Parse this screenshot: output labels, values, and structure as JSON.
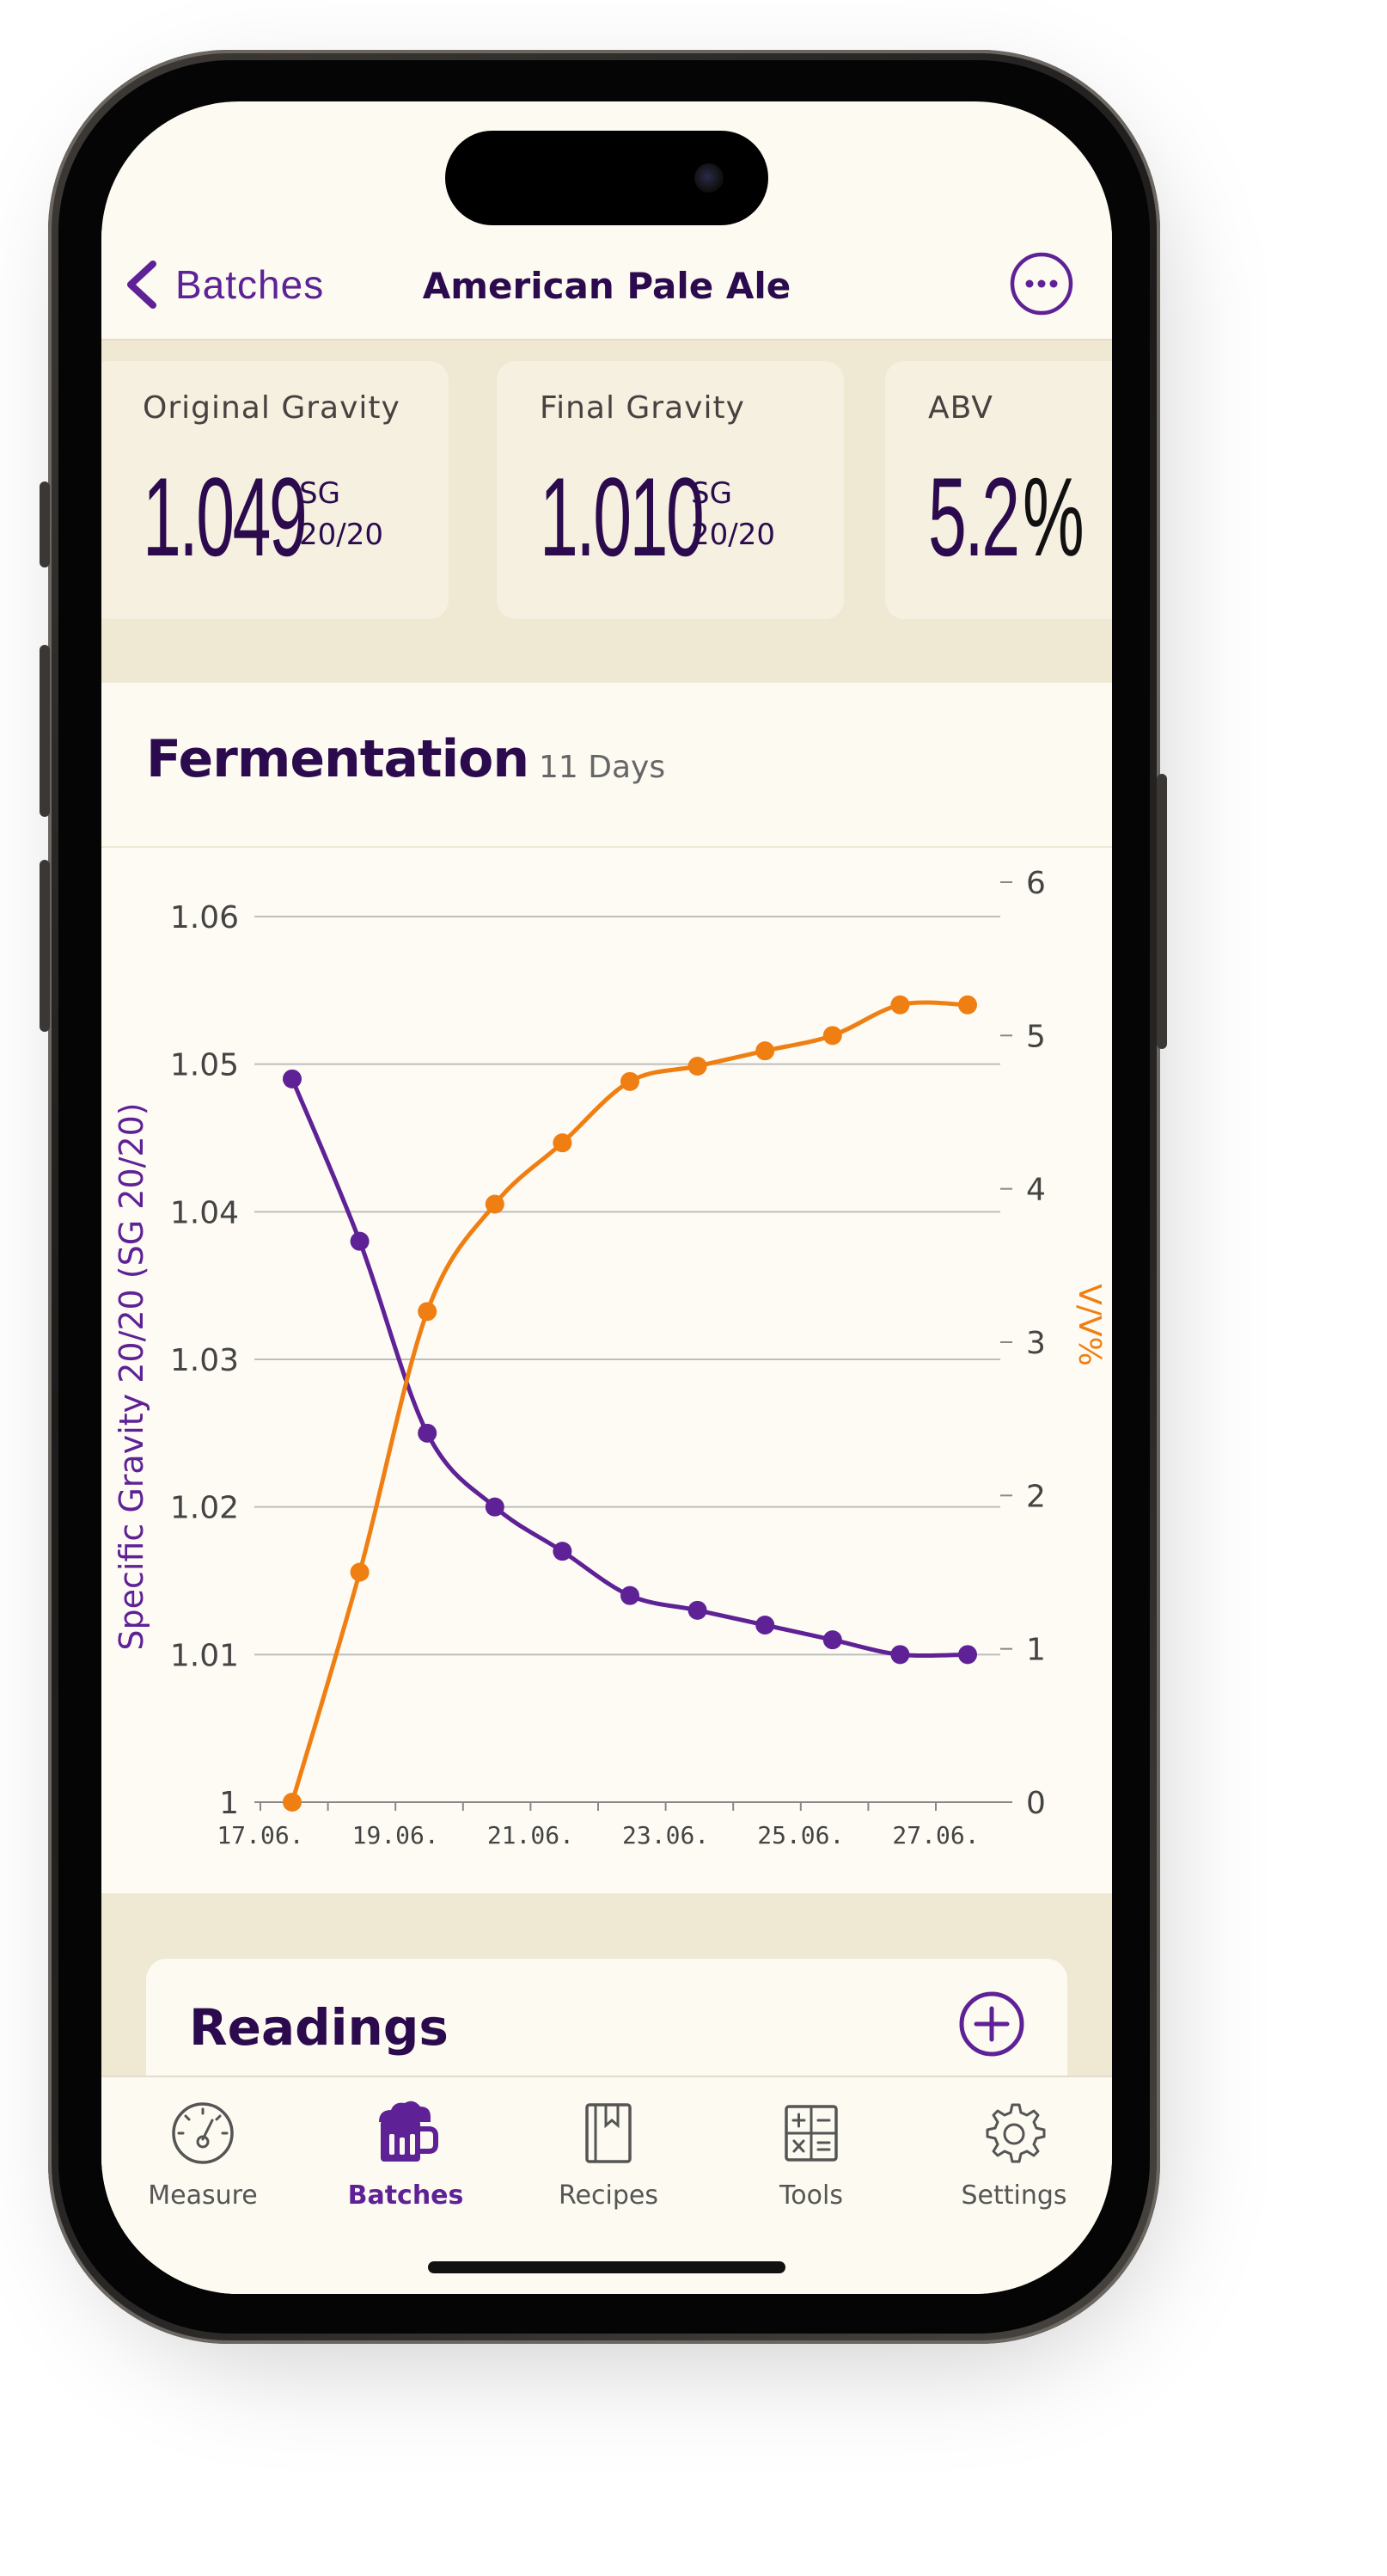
{
  "nav": {
    "back_label": "Batches",
    "title": "American Pale Ale"
  },
  "stats": {
    "original_gravity": {
      "label": "Original Gravity",
      "value": "1.049",
      "unit_top": "SG",
      "unit_bottom": "20/20"
    },
    "final_gravity": {
      "label": "Final Gravity",
      "value": "1.010",
      "unit_top": "SG",
      "unit_bottom": "20/20"
    },
    "abv": {
      "label": "ABV",
      "value": "5.2",
      "unit": "%"
    }
  },
  "fermentation": {
    "title": "Fermentation",
    "duration": "11 Days"
  },
  "colors": {
    "accent": "#5e2196",
    "abv_series": "#f07f13",
    "heading": "#2b0b4d",
    "background": "#fcfaf1",
    "band": "#efe8d3"
  },
  "chart_data": {
    "type": "line",
    "x": [
      "17.06.",
      "18.06.",
      "19.06.",
      "20.06.",
      "21.06.",
      "22.06.",
      "23.06.",
      "24.06.",
      "25.06.",
      "26.06.",
      "27.06."
    ],
    "x_tick_labels": [
      "17.06.",
      "19.06.",
      "21.06.",
      "23.06.",
      "25.06.",
      "27.06."
    ],
    "series": [
      {
        "name": "Specific Gravity 20/20 (SG 20/20)",
        "axis": "left",
        "color": "#5e2196",
        "values": [
          1.049,
          1.038,
          1.025,
          1.02,
          1.017,
          1.014,
          1.013,
          1.012,
          1.011,
          1.01,
          1.01
        ]
      },
      {
        "name": "V/V%",
        "axis": "right",
        "color": "#f07f13",
        "values": [
          0.0,
          1.5,
          3.2,
          3.9,
          4.3,
          4.7,
          4.8,
          4.9,
          5.0,
          5.2,
          5.2
        ]
      }
    ],
    "ylabel_left": "Specific Gravity 20/20 (SG 20/20)",
    "ylabel_right": "V/V%",
    "ylim_left": [
      1.0,
      1.06
    ],
    "yticks_left": [
      "1",
      "1.01",
      "1.02",
      "1.03",
      "1.04",
      "1.05",
      "1.06"
    ],
    "ylim_right": [
      0,
      6
    ],
    "yticks_right": [
      "0",
      "1",
      "2",
      "3",
      "4",
      "5",
      "6"
    ],
    "grid": true
  },
  "readings": {
    "title": "Readings"
  },
  "tabs": [
    {
      "label": "Measure",
      "icon": "gauge-icon"
    },
    {
      "label": "Batches",
      "icon": "beer-mug-icon"
    },
    {
      "label": "Recipes",
      "icon": "book-icon"
    },
    {
      "label": "Tools",
      "icon": "calculator-icon"
    },
    {
      "label": "Settings",
      "icon": "gear-icon"
    }
  ]
}
